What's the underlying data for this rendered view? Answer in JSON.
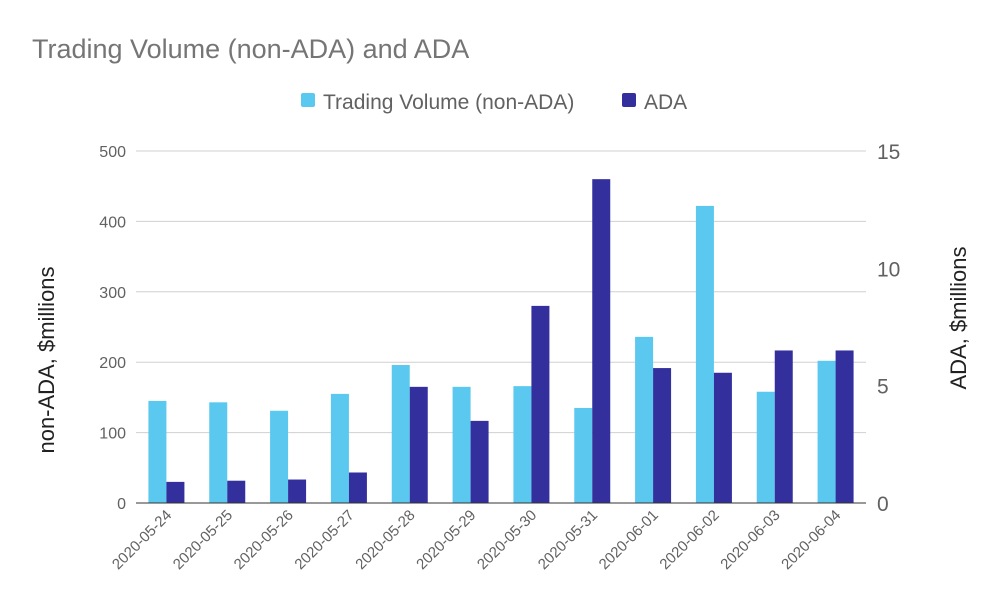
{
  "chart_data": {
    "type": "bar",
    "title": "Trading Volume (non-ADA) and ADA",
    "categories": [
      "2020-05-24",
      "2020-05-25",
      "2020-05-26",
      "2020-05-27",
      "2020-05-28",
      "2020-05-29",
      "2020-05-30",
      "2020-05-31",
      "2020-06-01",
      "2020-06-02",
      "2020-06-03",
      "2020-06-04"
    ],
    "series": [
      {
        "name": "Trading Volume (non-ADA)",
        "axis": "left",
        "color": "#5bc8f0",
        "values": [
          145,
          143,
          131,
          155,
          196,
          165,
          166,
          135,
          236,
          422,
          158,
          202
        ]
      },
      {
        "name": "ADA",
        "axis": "right",
        "color": "#33309e",
        "values": [
          0.9,
          0.95,
          1.0,
          1.3,
          4.95,
          3.5,
          8.4,
          13.8,
          5.75,
          5.55,
          6.5,
          6.5
        ]
      }
    ],
    "ylabel": "non-ADA, $millions",
    "ylabel_right": "ADA, $millions",
    "ylim": [
      0,
      500
    ],
    "ylim_right": [
      0,
      15
    ],
    "yticks": [
      "0",
      "100",
      "200",
      "300",
      "400",
      "500"
    ],
    "yticks_right": [
      "0",
      "5",
      "10",
      "15"
    ],
    "legend_position": "top-center",
    "grid": true
  }
}
